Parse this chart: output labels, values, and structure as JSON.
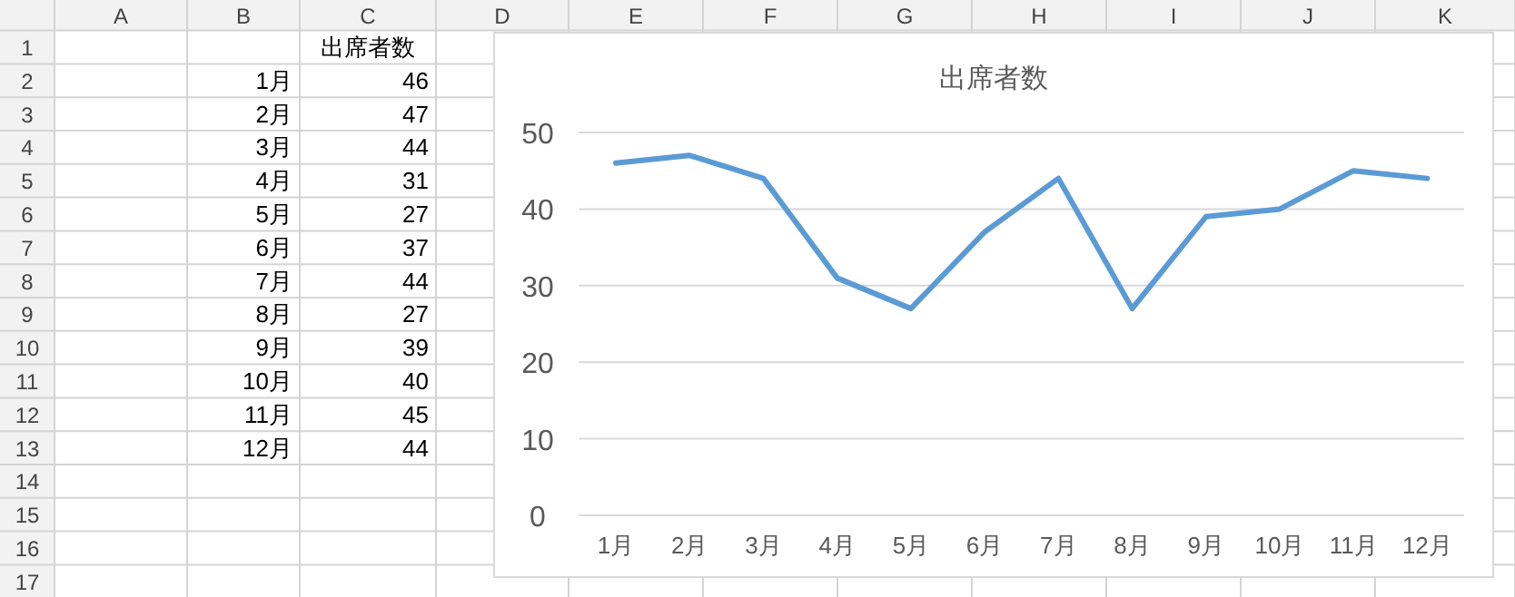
{
  "chart_data": {
    "type": "line",
    "title": "出席者数",
    "categories": [
      "1月",
      "2月",
      "3月",
      "4月",
      "5月",
      "6月",
      "7月",
      "8月",
      "9月",
      "10月",
      "11月",
      "12月"
    ],
    "values": [
      46,
      47,
      44,
      31,
      27,
      37,
      44,
      27,
      39,
      40,
      45,
      44
    ],
    "color": "#5b9bd5",
    "ylim": [
      0,
      50
    ],
    "yticks": [
      0,
      10,
      20,
      30,
      40,
      50
    ],
    "grid": "y",
    "annotations": [
      "A",
      "B",
      "C",
      "D",
      "E",
      "F",
      "G",
      "H",
      "I",
      "J",
      "K",
      "1",
      "2",
      "3",
      "4",
      "5",
      "6",
      "7",
      "8",
      "9",
      "10",
      "11",
      "12",
      "13",
      "14",
      "15",
      "16",
      "17",
      "46",
      "47",
      "44",
      "31",
      "27",
      "37",
      "44",
      "27",
      "39",
      "40",
      "45",
      "44"
    ]
  }
}
